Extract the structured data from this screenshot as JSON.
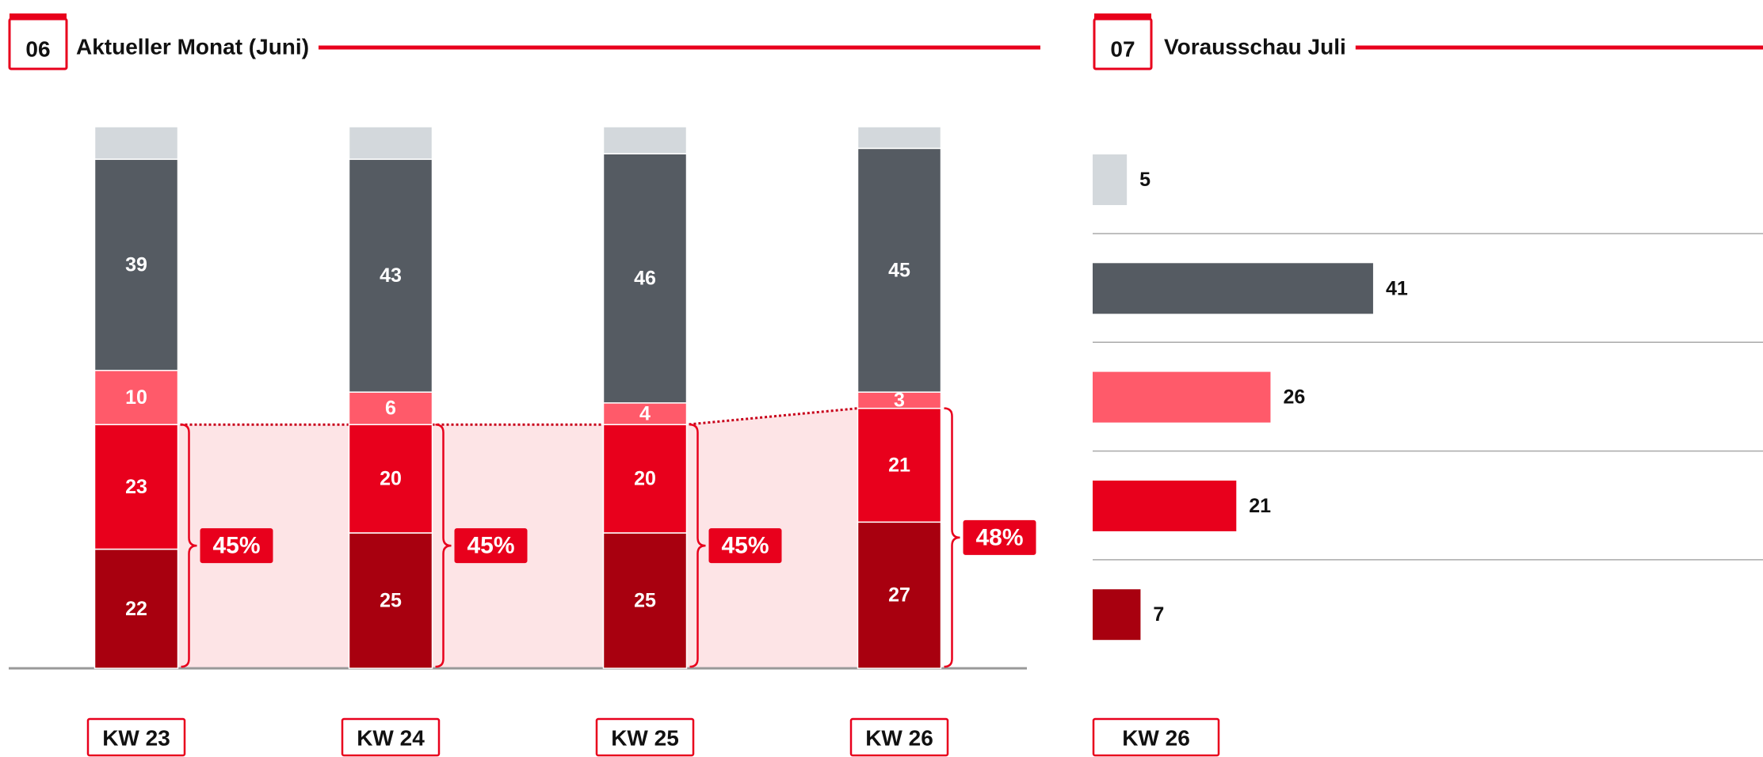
{
  "chart_data": [
    {
      "type": "stacked_bar",
      "number": "06",
      "title": "Aktueller Monat (Juni)",
      "categories": [
        "KW 23",
        "KW 24",
        "KW 25",
        "KW 26"
      ],
      "series": [
        {
          "color": "#a8000f",
          "labels": true,
          "values": [
            22,
            25,
            25,
            27
          ]
        },
        {
          "color": "#e8001c",
          "labels": true,
          "values": [
            23,
            20,
            20,
            21
          ]
        },
        {
          "color": "#ff5a6a",
          "labels": true,
          "values": [
            10,
            6,
            4,
            3
          ]
        },
        {
          "color": "#555b62",
          "labels": true,
          "values": [
            39,
            43,
            46,
            45
          ]
        },
        {
          "color": "#d3d8dc",
          "labels": false,
          "values": [
            6,
            6,
            5,
            4
          ]
        }
      ],
      "shares": [
        45,
        45,
        45,
        48
      ],
      "share_labels": [
        "45%",
        "45%",
        "45%",
        "48%"
      ],
      "ylim": [
        0,
        100
      ]
    },
    {
      "type": "hbar",
      "number": "07",
      "title": "Vorausschau Juli",
      "category": "KW 26",
      "values": [
        5,
        41,
        26,
        21,
        7
      ],
      "colors": [
        "#d3d8dc",
        "#555b62",
        "#ff5a6a",
        "#e8001c",
        "#a8000f"
      ],
      "xlim": [
        0,
        98
      ]
    }
  ]
}
